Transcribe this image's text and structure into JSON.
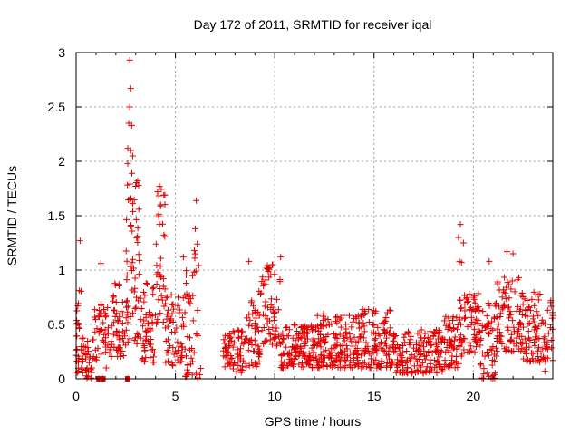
{
  "chart_data": {
    "type": "scatter",
    "title": "Day 172 of 2011, SRMTID for receiver iqal",
    "xlabel": "GPS time / hours",
    "ylabel": "SRMTID / TECUs",
    "xlim": [
      0,
      24
    ],
    "ylim": [
      0,
      3
    ],
    "xticks": [
      "0",
      "5",
      "10",
      "15",
      "20"
    ],
    "yticks": [
      "0",
      "0.5",
      "1",
      "1.5",
      "2",
      "2.5",
      "3"
    ],
    "grid": true,
    "marker": "plus",
    "color": "#e00000",
    "point_groups": [
      {
        "x_range": [
          0.0,
          0.3
        ],
        "y_range": [
          0.05,
          0.9
        ],
        "count": 30
      },
      {
        "x_range": [
          0.3,
          0.8
        ],
        "y_range": [
          0.0,
          0.4
        ],
        "count": 30
      },
      {
        "x_range": [
          0.8,
          1.6
        ],
        "y_range": [
          0.1,
          0.7
        ],
        "count": 45
      },
      {
        "x_range": [
          1.6,
          2.5
        ],
        "y_range": [
          0.2,
          0.9
        ],
        "count": 55
      },
      {
        "x_range": [
          2.5,
          3.2
        ],
        "y_range": [
          0.3,
          1.9
        ],
        "count": 60
      },
      {
        "x_range": [
          3.2,
          4.0
        ],
        "y_range": [
          0.15,
          0.9
        ],
        "count": 55
      },
      {
        "x_range": [
          4.0,
          4.5
        ],
        "y_range": [
          0.5,
          1.75
        ],
        "count": 35
      },
      {
        "x_range": [
          4.5,
          5.5
        ],
        "y_range": [
          0.1,
          0.8
        ],
        "count": 60
      },
      {
        "x_range": [
          5.5,
          6.3
        ],
        "y_range": [
          0.0,
          1.3
        ],
        "count": 45
      },
      {
        "x_range": [
          7.4,
          8.6
        ],
        "y_range": [
          0.05,
          0.45
        ],
        "count": 70
      },
      {
        "x_range": [
          8.6,
          9.3
        ],
        "y_range": [
          0.1,
          0.85
        ],
        "count": 50
      },
      {
        "x_range": [
          9.3,
          10.3
        ],
        "y_range": [
          0.3,
          1.05
        ],
        "count": 65
      },
      {
        "x_range": [
          10.3,
          12.0
        ],
        "y_range": [
          0.1,
          0.5
        ],
        "count": 130
      },
      {
        "x_range": [
          12.0,
          14.0
        ],
        "y_range": [
          0.1,
          0.6
        ],
        "count": 150
      },
      {
        "x_range": [
          14.0,
          16.0
        ],
        "y_range": [
          0.1,
          0.65
        ],
        "count": 150
      },
      {
        "x_range": [
          16.0,
          18.5
        ],
        "y_range": [
          0.05,
          0.45
        ],
        "count": 170
      },
      {
        "x_range": [
          18.5,
          19.3
        ],
        "y_range": [
          0.1,
          0.6
        ],
        "count": 60
      },
      {
        "x_range": [
          19.3,
          20.3
        ],
        "y_range": [
          0.2,
          0.8
        ],
        "count": 70
      },
      {
        "x_range": [
          20.3,
          21.2
        ],
        "y_range": [
          0.0,
          0.7
        ],
        "count": 60
      },
      {
        "x_range": [
          21.2,
          22.5
        ],
        "y_range": [
          0.25,
          0.95
        ],
        "count": 90
      },
      {
        "x_range": [
          22.5,
          24.0
        ],
        "y_range": [
          0.15,
          0.8
        ],
        "count": 100
      }
    ],
    "notable_points": [
      {
        "x": 0.2,
        "y": 1.27
      },
      {
        "x": 1.25,
        "y": 1.06
      },
      {
        "x": 2.7,
        "y": 2.93
      },
      {
        "x": 2.75,
        "y": 2.67
      },
      {
        "x": 2.7,
        "y": 2.5
      },
      {
        "x": 2.65,
        "y": 2.35
      },
      {
        "x": 2.8,
        "y": 2.33
      },
      {
        "x": 2.6,
        "y": 2.12
      },
      {
        "x": 2.75,
        "y": 2.1
      },
      {
        "x": 2.6,
        "y": 1.98
      },
      {
        "x": 2.85,
        "y": 2.05
      },
      {
        "x": 3.1,
        "y": 1.82
      },
      {
        "x": 3.15,
        "y": 1.78
      },
      {
        "x": 2.7,
        "y": 1.65
      },
      {
        "x": 4.2,
        "y": 1.77
      },
      {
        "x": 4.1,
        "y": 1.72
      },
      {
        "x": 4.25,
        "y": 1.6
      },
      {
        "x": 4.15,
        "y": 1.5
      },
      {
        "x": 4.2,
        "y": 1.42
      },
      {
        "x": 6.05,
        "y": 1.64
      },
      {
        "x": 6.0,
        "y": 1.38
      },
      {
        "x": 6.1,
        "y": 1.24
      },
      {
        "x": 5.95,
        "y": 1.18
      },
      {
        "x": 5.4,
        "y": 1.12
      },
      {
        "x": 8.7,
        "y": 1.08
      },
      {
        "x": 10.3,
        "y": 1.12
      },
      {
        "x": 9.9,
        "y": 1.05
      },
      {
        "x": 19.35,
        "y": 1.42
      },
      {
        "x": 19.25,
        "y": 1.3
      },
      {
        "x": 19.5,
        "y": 1.25
      },
      {
        "x": 19.3,
        "y": 1.08
      },
      {
        "x": 19.4,
        "y": 1.07
      },
      {
        "x": 20.8,
        "y": 1.08
      },
      {
        "x": 21.7,
        "y": 1.17
      },
      {
        "x": 22.0,
        "y": 1.15
      },
      {
        "x": 23.6,
        "y": 0.07
      },
      {
        "x": 1.15,
        "y": 0.0
      },
      {
        "x": 1.35,
        "y": 0.0
      },
      {
        "x": 2.6,
        "y": 0.0
      }
    ]
  }
}
